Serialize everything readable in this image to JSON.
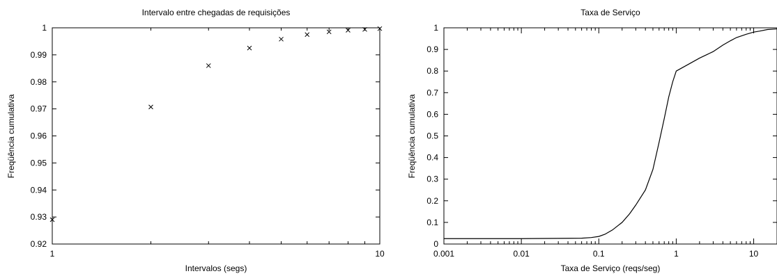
{
  "chart_data": [
    {
      "type": "scatter",
      "title": "Intervalo entre chegadas de requisições",
      "xlabel": "Intervalos (segs)",
      "ylabel": "Freqüência cumulativa",
      "xscale": "log",
      "xlim": [
        1,
        10
      ],
      "ylim": [
        0.92,
        1
      ],
      "xticks": [
        1,
        10
      ],
      "xtick_labels": [
        "1",
        "10"
      ],
      "yticks": [
        0.92,
        0.93,
        0.94,
        0.95,
        0.96,
        0.97,
        0.98,
        0.99,
        1
      ],
      "ytick_labels": [
        "0.92",
        "0.93",
        "0.94",
        "0.95",
        "0.96",
        "0.97",
        "0.98",
        "0.99",
        "1"
      ],
      "grid": false,
      "marker": "x",
      "series": [
        {
          "x": [
            1,
            2,
            3,
            4,
            5,
            6,
            7,
            8,
            9,
            10
          ],
          "y": [
            0.929,
            0.9707,
            0.986,
            0.9925,
            0.9958,
            0.9975,
            0.9985,
            0.9991,
            0.9994,
            0.9997
          ]
        }
      ]
    },
    {
      "type": "line",
      "title": "Taxa de Serviço",
      "xlabel": "Taxa de Serviço (reqs/seg)",
      "ylabel": "Freqüência cumulativa",
      "xscale": "log",
      "xlim": [
        0.001,
        20
      ],
      "ylim": [
        0,
        1
      ],
      "xticks": [
        0.001,
        0.01,
        0.1,
        1,
        10
      ],
      "xtick_labels": [
        "0.001",
        "0.01",
        "0.1",
        "1",
        "10"
      ],
      "yticks": [
        0,
        0.1,
        0.2,
        0.3,
        0.4,
        0.5,
        0.6,
        0.7,
        0.8,
        0.9,
        1
      ],
      "ytick_labels": [
        "0",
        "0.1",
        "0.2",
        "0.3",
        "0.4",
        "0.5",
        "0.6",
        "0.7",
        "0.8",
        "0.9",
        "1"
      ],
      "grid": false,
      "series": [
        {
          "x": [
            0.001,
            0.005,
            0.01,
            0.03,
            0.06,
            0.08,
            0.1,
            0.12,
            0.15,
            0.2,
            0.25,
            0.3,
            0.4,
            0.5,
            0.6,
            0.7,
            0.8,
            0.9,
            1,
            1.5,
            2,
            3,
            4,
            5,
            6,
            8,
            10,
            12,
            15,
            20
          ],
          "y": [
            0.025,
            0.025,
            0.025,
            0.026,
            0.027,
            0.03,
            0.035,
            0.045,
            0.065,
            0.1,
            0.14,
            0.18,
            0.25,
            0.345,
            0.47,
            0.58,
            0.68,
            0.75,
            0.8,
            0.835,
            0.86,
            0.89,
            0.92,
            0.94,
            0.955,
            0.97,
            0.98,
            0.985,
            0.992,
            0.995
          ]
        }
      ]
    }
  ]
}
